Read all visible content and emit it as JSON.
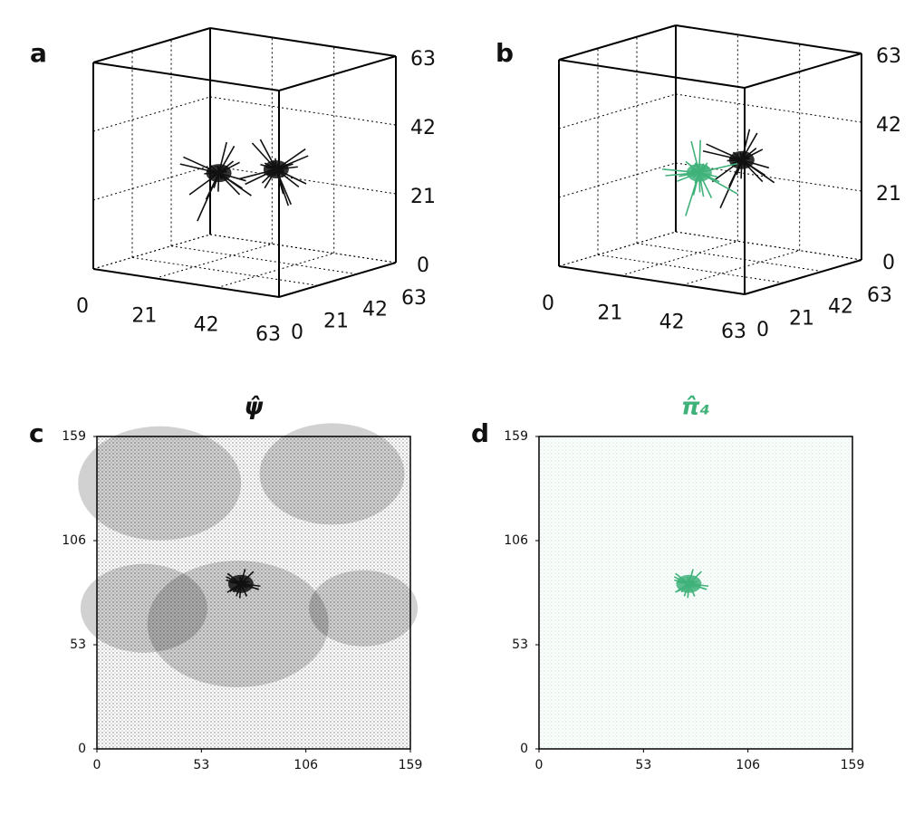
{
  "chart_data": [
    {
      "type": "quiver3d",
      "panel": "a",
      "xlim": [
        0,
        63
      ],
      "ylim": [
        0,
        63
      ],
      "zlim": [
        0,
        63
      ],
      "xticks": [
        0,
        21,
        42,
        63
      ],
      "yticks": [
        0,
        21,
        42,
        63
      ],
      "zticks": [
        0,
        21,
        42,
        63
      ],
      "grid": true,
      "series": [
        {
          "color": "#111111",
          "x": [
            30,
            40
          ],
          "y": [
            20,
            35
          ],
          "z": [
            30,
            30
          ]
        }
      ]
    },
    {
      "type": "quiver3d",
      "panel": "b",
      "xlim": [
        0,
        63
      ],
      "ylim": [
        0,
        63
      ],
      "zlim": [
        0,
        63
      ],
      "xticks": [
        0,
        21,
        42,
        63
      ],
      "yticks": [
        0,
        21,
        42,
        63
      ],
      "zticks": [
        0,
        21,
        42,
        63
      ],
      "grid": true,
      "series": [
        {
          "color": "#111111",
          "x": [
            40
          ],
          "y": [
            35
          ],
          "z": [
            32
          ]
        },
        {
          "color": "#3fb27a",
          "x": [
            35
          ],
          "y": [
            20
          ],
          "z": [
            30
          ]
        }
      ]
    },
    {
      "type": "quiver2d",
      "panel": "c",
      "title": "ψ̂",
      "title_color": "#111111",
      "color": "#111111",
      "xlim": [
        0,
        159
      ],
      "ylim": [
        0,
        159
      ],
      "xticks": [
        0,
        53,
        106,
        159
      ],
      "yticks": [
        0,
        53,
        106,
        159
      ],
      "series": [
        {
          "x": [
            73
          ],
          "y": [
            84
          ]
        }
      ]
    },
    {
      "type": "quiver2d",
      "panel": "d",
      "title": "π̂₄",
      "title_color": "#3fb27a",
      "color": "#3fb27a",
      "xlim": [
        0,
        159
      ],
      "ylim": [
        0,
        159
      ],
      "xticks": [
        0,
        53,
        106,
        159
      ],
      "yticks": [
        0,
        53,
        106,
        159
      ],
      "series": [
        {
          "x": [
            76
          ],
          "y": [
            84
          ]
        }
      ]
    }
  ]
}
